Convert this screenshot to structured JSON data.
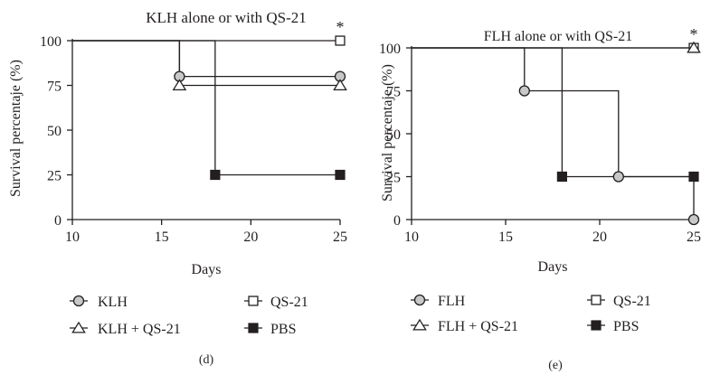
{
  "colors": {
    "ink": "#231f20",
    "gray_fill": "#c8c8c8",
    "white_fill": "#ffffff",
    "black_fill": "#231f20"
  },
  "chart_data": [
    {
      "type": "line",
      "step": true,
      "title": "KLH alone or with QS-21",
      "xlabel": "Days",
      "ylabel": "Survival percentaje (%)",
      "panel_label": "(d)",
      "xlim": [
        10,
        25
      ],
      "ylim": [
        0,
        100
      ],
      "xticks": [
        10,
        15,
        20,
        25
      ],
      "yticks": [
        0,
        25,
        50,
        75,
        100
      ],
      "grid": false,
      "legend_position": "bottom",
      "significance_mark": {
        "text": "*",
        "series": "QS-21",
        "x": 25
      },
      "series": [
        {
          "name": "KLH",
          "marker": "circle",
          "marker_fill": "gray",
          "x": [
            10,
            16,
            25
          ],
          "y": [
            100,
            80,
            80
          ],
          "markers_at": [
            [
              16,
              80
            ],
            [
              25,
              80
            ]
          ]
        },
        {
          "name": "QS-21",
          "marker": "square",
          "marker_fill": "white",
          "x": [
            10,
            25
          ],
          "y": [
            100,
            100
          ],
          "markers_at": [
            [
              25,
              100
            ]
          ]
        },
        {
          "name": "KLH + QS-21",
          "marker": "triangle",
          "marker_fill": "white",
          "x": [
            10,
            16,
            25
          ],
          "y": [
            100,
            75,
            75
          ],
          "markers_at": [
            [
              16,
              75
            ],
            [
              25,
              75
            ]
          ]
        },
        {
          "name": "PBS",
          "marker": "square",
          "marker_fill": "black",
          "x": [
            10,
            18,
            25
          ],
          "y": [
            100,
            25,
            25
          ],
          "markers_at": [
            [
              18,
              25
            ],
            [
              25,
              25
            ]
          ]
        }
      ]
    },
    {
      "type": "line",
      "step": true,
      "title": "FLH alone or with QS-21",
      "xlabel": "Days",
      "ylabel": "Survival percentaje (%)",
      "panel_label": "(e)",
      "xlim": [
        10,
        25
      ],
      "ylim": [
        0,
        100
      ],
      "xticks": [
        10,
        15,
        20,
        25
      ],
      "yticks": [
        0,
        25,
        50,
        75,
        100
      ],
      "grid": false,
      "legend_position": "bottom",
      "significance_mark": {
        "text": "*",
        "series": "QS-21",
        "x": 25
      },
      "series": [
        {
          "name": "FLH",
          "marker": "circle",
          "marker_fill": "gray",
          "x": [
            10,
            16,
            21,
            25
          ],
          "y": [
            100,
            75,
            25,
            0
          ],
          "markers_at": [
            [
              16,
              75
            ],
            [
              21,
              25
            ],
            [
              25,
              0
            ]
          ]
        },
        {
          "name": "QS-21",
          "marker": "square",
          "marker_fill": "white",
          "x": [
            10,
            25
          ],
          "y": [
            100,
            100
          ],
          "markers_at": [
            [
              25,
              100
            ]
          ]
        },
        {
          "name": "FLH + QS-21",
          "marker": "triangle",
          "marker_fill": "white",
          "x": [
            10,
            25
          ],
          "y": [
            100,
            100
          ],
          "markers_at": [
            [
              25,
              100
            ]
          ]
        },
        {
          "name": "PBS",
          "marker": "square",
          "marker_fill": "black",
          "x": [
            10,
            18,
            25
          ],
          "y": [
            100,
            25,
            25
          ],
          "markers_at": [
            [
              18,
              25
            ],
            [
              25,
              25
            ]
          ]
        }
      ]
    }
  ]
}
